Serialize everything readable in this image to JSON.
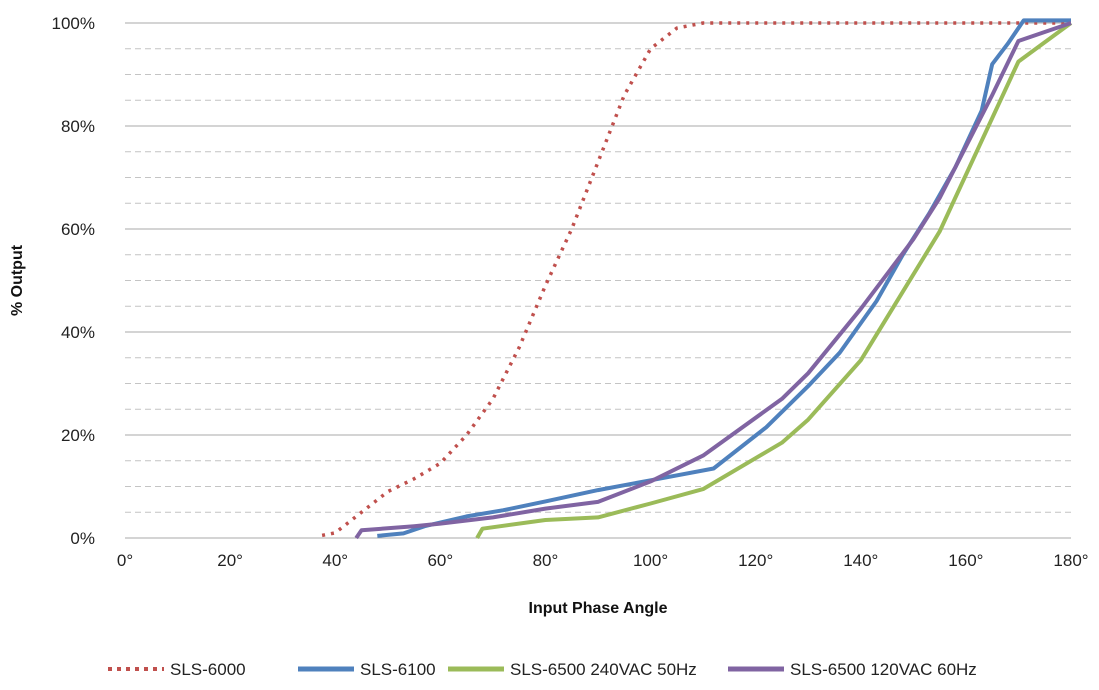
{
  "chart_data": {
    "type": "line",
    "title": "",
    "xlabel": "Input Phase Angle",
    "ylabel": "% Output",
    "xlim": [
      0,
      180
    ],
    "ylim": [
      0,
      100
    ],
    "x_ticks": [
      0,
      20,
      40,
      60,
      80,
      100,
      120,
      140,
      160,
      180
    ],
    "x_tick_labels": [
      "0°",
      "20°",
      "40°",
      "60°",
      "80°",
      "100°",
      "120°",
      "140°",
      "160°",
      "180°"
    ],
    "y_ticks": [
      0,
      20,
      40,
      60,
      80,
      100
    ],
    "y_tick_labels": [
      "0%",
      "20%",
      "40%",
      "60%",
      "80%",
      "100%"
    ],
    "minor_grid_step": 5,
    "grid": true,
    "legend_position": "bottom",
    "series": [
      {
        "name": "SLS-6000",
        "color": "#c0504d",
        "style": "dotted",
        "points": [
          [
            37.5,
            0.5
          ],
          [
            40,
            1
          ],
          [
            45,
            5
          ],
          [
            50,
            9
          ],
          [
            55,
            11.5
          ],
          [
            60,
            14.5
          ],
          [
            65,
            20
          ],
          [
            70,
            27
          ],
          [
            75,
            37
          ],
          [
            80,
            49
          ],
          [
            85,
            60
          ],
          [
            90,
            73
          ],
          [
            95,
            86
          ],
          [
            100,
            95
          ],
          [
            105,
            99
          ],
          [
            110,
            100
          ],
          [
            120,
            100
          ],
          [
            140,
            100
          ],
          [
            160,
            100
          ],
          [
            180,
            100
          ]
        ]
      },
      {
        "name": "SLS-6100",
        "color": "#4f81bd",
        "style": "solid",
        "points": [
          [
            48,
            0.4
          ],
          [
            53,
            0.9
          ],
          [
            57,
            2.3
          ],
          [
            65,
            4.2
          ],
          [
            72,
            5.4
          ],
          [
            80,
            7.1
          ],
          [
            90,
            9.3
          ],
          [
            100,
            11.2
          ],
          [
            112,
            13.5
          ],
          [
            122,
            21.5
          ],
          [
            130,
            29.5
          ],
          [
            136,
            36
          ],
          [
            143,
            46
          ],
          [
            148,
            55
          ],
          [
            153,
            63
          ],
          [
            158,
            72
          ],
          [
            163,
            83
          ],
          [
            165,
            92
          ],
          [
            168,
            96
          ],
          [
            171,
            100.5
          ],
          [
            180,
            100.5
          ]
        ]
      },
      {
        "name": "SLS-6500 240VAC 50Hz",
        "color": "#9bbb59",
        "style": "solid",
        "points": [
          [
            67,
            0
          ],
          [
            68,
            1.8
          ],
          [
            80,
            3.5
          ],
          [
            90,
            4
          ],
          [
            100,
            6.7
          ],
          [
            110,
            9.5
          ],
          [
            125,
            18.5
          ],
          [
            130,
            23
          ],
          [
            140,
            34.5
          ],
          [
            155,
            59.5
          ],
          [
            170,
            92.5
          ],
          [
            180,
            100
          ]
        ]
      },
      {
        "name": "SLS-6500 120VAC 60Hz",
        "color": "#8064a2",
        "style": "solid",
        "points": [
          [
            44,
            0
          ],
          [
            45,
            1.5
          ],
          [
            55,
            2.3
          ],
          [
            60,
            2.8
          ],
          [
            70,
            4
          ],
          [
            80,
            5.7
          ],
          [
            90,
            7
          ],
          [
            100,
            11
          ],
          [
            110,
            16
          ],
          [
            125,
            27
          ],
          [
            130,
            32
          ],
          [
            140,
            44.5
          ],
          [
            150,
            58
          ],
          [
            155,
            66
          ],
          [
            160,
            76
          ],
          [
            165,
            86
          ],
          [
            170,
            96.5
          ],
          [
            180,
            100
          ]
        ]
      }
    ]
  }
}
